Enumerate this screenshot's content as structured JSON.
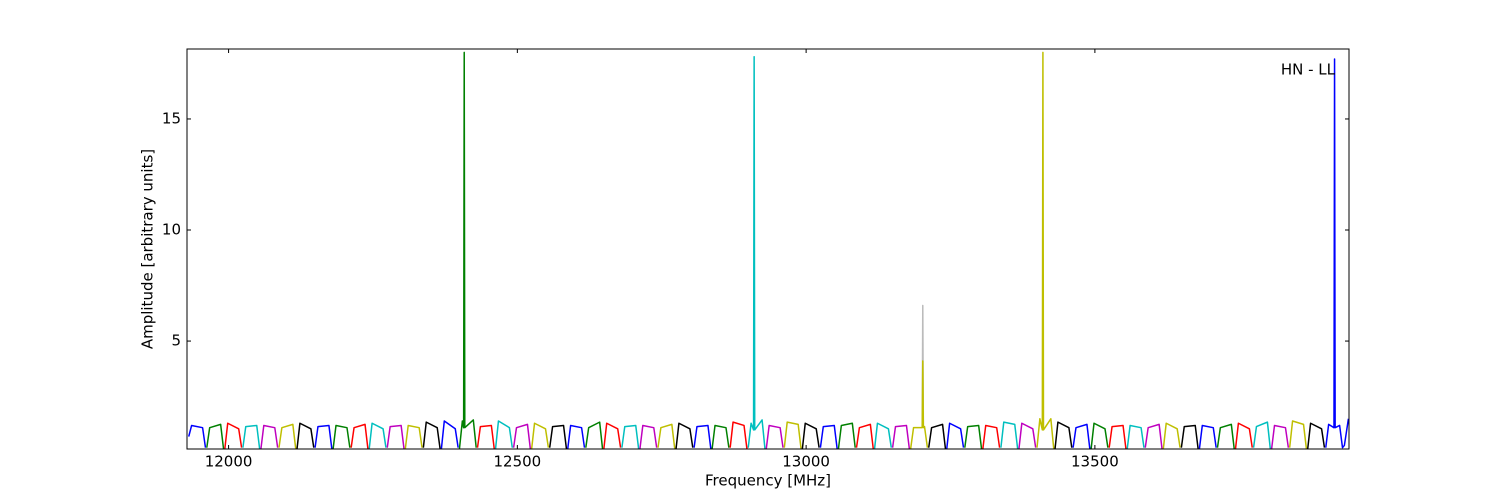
{
  "chart_data": {
    "type": "line",
    "annotation": "HN - LL",
    "x_label": "Frequency [MHz]",
    "y_label": "Amplitude [arbitrary units]",
    "xlim": [
      11928,
      13940
    ],
    "ylim": [
      0.14,
      18.15
    ],
    "xticks": [
      12000,
      12500,
      13000,
      13500
    ],
    "yticks": [
      5,
      10,
      15
    ],
    "grid": false,
    "series": [
      {
        "color": "#bbbbbb",
        "x": [
          13201,
          13202,
          13203
        ],
        "values": [
          1.1,
          6.6,
          1.1
        ]
      },
      {
        "color": "#0000ff",
        "x": [
          11931,
          11936,
          11955,
          11960
        ],
        "values": [
          0.7,
          1.2,
          1.1,
          0.2
        ]
      },
      {
        "color": "#008000",
        "x": [
          11962.25,
          11967.25,
          11986.25,
          11991.25
        ],
        "values": [
          0.2,
          1.1,
          1.25,
          0.15
        ]
      },
      {
        "color": "#ff0000",
        "x": [
          11993.5,
          11998.5,
          12017.5,
          12022.5
        ],
        "values": [
          0.15,
          1.3,
          1.05,
          0.2
        ]
      },
      {
        "color": "#00bfbf",
        "x": [
          12024.75,
          12029.75,
          12048.75,
          12053.75
        ],
        "values": [
          0.2,
          1.15,
          1.2,
          0.15
        ]
      },
      {
        "color": "#bf00bf",
        "x": [
          12056,
          12061,
          12080,
          12085
        ],
        "values": [
          0.15,
          1.2,
          1.1,
          0.2
        ]
      },
      {
        "color": "#bfbf00",
        "x": [
          12087.25,
          12092.25,
          12111.25,
          12116.25
        ],
        "values": [
          0.2,
          1.1,
          1.25,
          0.15
        ]
      },
      {
        "color": "#000000",
        "x": [
          12118.5,
          12123.5,
          12142.5,
          12147.5
        ],
        "values": [
          0.15,
          1.3,
          1.05,
          0.2
        ]
      },
      {
        "color": "#0000ff",
        "x": [
          12149.75,
          12154.75,
          12173.75,
          12178.75
        ],
        "values": [
          0.2,
          1.15,
          1.2,
          0.15
        ]
      },
      {
        "color": "#008000",
        "x": [
          12181,
          12186,
          12205,
          12210
        ],
        "values": [
          0.15,
          1.2,
          1.1,
          0.2
        ]
      },
      {
        "color": "#ff0000",
        "x": [
          12212.25,
          12217.25,
          12236.25,
          12241.25
        ],
        "values": [
          0.2,
          1.1,
          1.25,
          0.15
        ]
      },
      {
        "color": "#00bfbf",
        "x": [
          12243.5,
          12248.5,
          12267.5,
          12272.5
        ],
        "values": [
          0.15,
          1.3,
          1.05,
          0.2
        ]
      },
      {
        "color": "#bf00bf",
        "x": [
          12274.75,
          12279.75,
          12298.75,
          12303.75
        ],
        "values": [
          0.2,
          1.15,
          1.2,
          0.15
        ]
      },
      {
        "color": "#bfbf00",
        "x": [
          12306,
          12311,
          12330,
          12335
        ],
        "values": [
          0.15,
          1.2,
          1.1,
          0.2
        ]
      },
      {
        "color": "#000000",
        "x": [
          12337.25,
          12342.25,
          12361.25,
          12366.25
        ],
        "values": [
          0.2,
          1.35,
          1.1,
          0.15
        ]
      },
      {
        "color": "#0000ff",
        "x": [
          12368.5,
          12373.5,
          12392.5,
          12397.5
        ],
        "values": [
          0.15,
          1.4,
          1.05,
          0.2
        ]
      },
      {
        "color": "#008000",
        "x": [
          12399.75,
          12404.75,
          12407,
          12408,
          12409,
          12423.75,
          12428.75
        ],
        "values": [
          0.15,
          1.4,
          1.1,
          18,
          1.1,
          1.45,
          0.2
        ]
      },
      {
        "color": "#ff0000",
        "x": [
          12431,
          12436,
          12455,
          12460
        ],
        "values": [
          0.2,
          1.15,
          1.2,
          0.15
        ]
      },
      {
        "color": "#00bfbf",
        "x": [
          12462.25,
          12467.25,
          12486.25,
          12491.25
        ],
        "values": [
          0.15,
          1.4,
          1.1,
          0.2
        ]
      },
      {
        "color": "#bf00bf",
        "x": [
          12493.5,
          12498.5,
          12517.5,
          12522.5
        ],
        "values": [
          0.2,
          1.1,
          1.25,
          0.15
        ]
      },
      {
        "color": "#bfbf00",
        "x": [
          12524.75,
          12529.75,
          12548.75,
          12553.75
        ],
        "values": [
          0.15,
          1.3,
          1.05,
          0.2
        ]
      },
      {
        "color": "#000000",
        "x": [
          12556,
          12561,
          12580,
          12585
        ],
        "values": [
          0.2,
          1.15,
          1.2,
          0.15
        ]
      },
      {
        "color": "#0000ff",
        "x": [
          12587.25,
          12592.25,
          12611.25,
          12616.25
        ],
        "values": [
          0.15,
          1.2,
          1.1,
          0.2
        ]
      },
      {
        "color": "#008000",
        "x": [
          12618.5,
          12623.5,
          12642.5,
          12647.5
        ],
        "values": [
          0.2,
          1.1,
          1.35,
          0.15
        ]
      },
      {
        "color": "#ff0000",
        "x": [
          12649.75,
          12654.75,
          12673.75,
          12678.75
        ],
        "values": [
          0.15,
          1.3,
          1.05,
          0.2
        ]
      },
      {
        "color": "#00bfbf",
        "x": [
          12681,
          12686,
          12705,
          12710
        ],
        "values": [
          0.2,
          1.15,
          1.2,
          0.15
        ]
      },
      {
        "color": "#bf00bf",
        "x": [
          12712.25,
          12717.25,
          12736.25,
          12741.25
        ],
        "values": [
          0.15,
          1.2,
          1.1,
          0.2
        ]
      },
      {
        "color": "#bfbf00",
        "x": [
          12743.5,
          12748.5,
          12767.5,
          12772.5
        ],
        "values": [
          0.2,
          1.1,
          1.25,
          0.15
        ]
      },
      {
        "color": "#000000",
        "x": [
          12774.75,
          12779.75,
          12798.75,
          12803.75
        ],
        "values": [
          0.15,
          1.3,
          1.05,
          0.2
        ]
      },
      {
        "color": "#0000ff",
        "x": [
          12806,
          12811,
          12830,
          12835
        ],
        "values": [
          0.2,
          1.15,
          1.2,
          0.15
        ]
      },
      {
        "color": "#008000",
        "x": [
          12837.25,
          12842.25,
          12861.25,
          12866.25
        ],
        "values": [
          0.15,
          1.2,
          1.1,
          0.2
        ]
      },
      {
        "color": "#ff0000",
        "x": [
          12868.5,
          12873.5,
          12892.5,
          12897.5
        ],
        "values": [
          0.2,
          1.35,
          1.2,
          0.15
        ]
      },
      {
        "color": "#00bfbf",
        "x": [
          12899.75,
          12904.75,
          12909,
          12910,
          12911,
          12923.75,
          12928.75
        ],
        "values": [
          0.2,
          1.3,
          1.0,
          17.8,
          1.0,
          1.45,
          0.15
        ]
      },
      {
        "color": "#bf00bf",
        "x": [
          12931,
          12936,
          12955,
          12960
        ],
        "values": [
          0.15,
          1.2,
          1.1,
          0.2
        ]
      },
      {
        "color": "#bfbf00",
        "x": [
          12962.25,
          12967.25,
          12986.25,
          12991.25
        ],
        "values": [
          0.2,
          1.35,
          1.25,
          0.15
        ]
      },
      {
        "color": "#000000",
        "x": [
          12993.5,
          12998.5,
          13017.5,
          13022.5
        ],
        "values": [
          0.15,
          1.3,
          1.05,
          0.2
        ]
      },
      {
        "color": "#0000ff",
        "x": [
          13024.75,
          13029.75,
          13048.75,
          13053.75
        ],
        "values": [
          0.2,
          1.15,
          1.2,
          0.15
        ]
      },
      {
        "color": "#008000",
        "x": [
          13056,
          13061,
          13080,
          13085
        ],
        "values": [
          0.15,
          1.2,
          1.3,
          0.2
        ]
      },
      {
        "color": "#ff0000",
        "x": [
          13087.25,
          13092.25,
          13111.25,
          13116.25
        ],
        "values": [
          0.2,
          1.1,
          1.25,
          0.15
        ]
      },
      {
        "color": "#00bfbf",
        "x": [
          13118.5,
          13123.5,
          13142.5,
          13147.5
        ],
        "values": [
          0.15,
          1.3,
          1.05,
          0.2
        ]
      },
      {
        "color": "#bf00bf",
        "x": [
          13149.75,
          13154.75,
          13173.75,
          13178.75
        ],
        "values": [
          0.2,
          1.15,
          1.2,
          0.15
        ]
      },
      {
        "color": "#bfbf00",
        "x": [
          13181,
          13186,
          13201,
          13202,
          13203,
          13205,
          13210
        ],
        "values": [
          0.15,
          1.1,
          1.1,
          4.1,
          1.1,
          1.15,
          0.2
        ]
      },
      {
        "color": "#000000",
        "x": [
          13212.25,
          13217.25,
          13236.25,
          13241.25
        ],
        "values": [
          0.2,
          1.1,
          1.25,
          0.15
        ]
      },
      {
        "color": "#0000ff",
        "x": [
          13243.5,
          13248.5,
          13267.5,
          13272.5
        ],
        "values": [
          0.15,
          1.3,
          1.05,
          0.2
        ]
      },
      {
        "color": "#008000",
        "x": [
          13274.75,
          13279.75,
          13298.75,
          13303.75
        ],
        "values": [
          0.2,
          1.15,
          1.2,
          0.15
        ]
      },
      {
        "color": "#ff0000",
        "x": [
          13306,
          13311,
          13330,
          13335
        ],
        "values": [
          0.15,
          1.2,
          1.1,
          0.2
        ]
      },
      {
        "color": "#00bfbf",
        "x": [
          13337.25,
          13342.25,
          13361.25,
          13366.25
        ],
        "values": [
          0.2,
          1.35,
          1.25,
          0.15
        ]
      },
      {
        "color": "#bf00bf",
        "x": [
          13368.5,
          13373.5,
          13392.5,
          13397.5
        ],
        "values": [
          0.15,
          1.3,
          1.05,
          0.2
        ]
      },
      {
        "color": "#bfbf00",
        "x": [
          13399.75,
          13404.75,
          13409,
          13410,
          13411,
          13423.75,
          13428.75
        ],
        "values": [
          0.2,
          1.5,
          1.0,
          18,
          1.0,
          1.5,
          0.15
        ]
      },
      {
        "color": "#000000",
        "x": [
          13431,
          13436,
          13455,
          13460
        ],
        "values": [
          0.15,
          1.35,
          1.1,
          0.2
        ]
      },
      {
        "color": "#0000ff",
        "x": [
          13462.25,
          13467.25,
          13486.25,
          13491.25
        ],
        "values": [
          0.2,
          1.1,
          1.25,
          0.15
        ]
      },
      {
        "color": "#008000",
        "x": [
          13493.5,
          13498.5,
          13517.5,
          13522.5
        ],
        "values": [
          0.15,
          1.3,
          1.05,
          0.2
        ]
      },
      {
        "color": "#ff0000",
        "x": [
          13524.75,
          13529.75,
          13548.75,
          13553.75
        ],
        "values": [
          0.2,
          1.15,
          1.2,
          0.15
        ]
      },
      {
        "color": "#00bfbf",
        "x": [
          13556,
          13561,
          13580,
          13585
        ],
        "values": [
          0.15,
          1.2,
          1.1,
          0.2
        ]
      },
      {
        "color": "#bf00bf",
        "x": [
          13587.25,
          13592.25,
          13611.25,
          13616.25
        ],
        "values": [
          0.2,
          1.1,
          1.25,
          0.15
        ]
      },
      {
        "color": "#bfbf00",
        "x": [
          13618.5,
          13623.5,
          13642.5,
          13647.5
        ],
        "values": [
          0.15,
          1.3,
          1.05,
          0.2
        ]
      },
      {
        "color": "#000000",
        "x": [
          13649.75,
          13654.75,
          13673.75,
          13678.75
        ],
        "values": [
          0.2,
          1.15,
          1.2,
          0.15
        ]
      },
      {
        "color": "#0000ff",
        "x": [
          13681,
          13686,
          13705,
          13710
        ],
        "values": [
          0.15,
          1.2,
          1.1,
          0.2
        ]
      },
      {
        "color": "#008000",
        "x": [
          13712.25,
          13717.25,
          13736.25,
          13741.25
        ],
        "values": [
          0.2,
          1.1,
          1.25,
          0.15
        ]
      },
      {
        "color": "#ff0000",
        "x": [
          13743.5,
          13748.5,
          13767.5,
          13772.5
        ],
        "values": [
          0.15,
          1.3,
          1.05,
          0.2
        ]
      },
      {
        "color": "#00bfbf",
        "x": [
          13774.75,
          13779.75,
          13798.75,
          13803.75
        ],
        "values": [
          0.2,
          1.15,
          1.35,
          0.15
        ]
      },
      {
        "color": "#bf00bf",
        "x": [
          13806,
          13811,
          13830,
          13835
        ],
        "values": [
          0.15,
          1.2,
          1.1,
          0.2
        ]
      },
      {
        "color": "#bfbf00",
        "x": [
          13837.25,
          13842.25,
          13861.25,
          13866.25
        ],
        "values": [
          0.2,
          1.4,
          1.25,
          0.15
        ]
      },
      {
        "color": "#000000",
        "x": [
          13868.5,
          13873.5,
          13892.5,
          13897.5
        ],
        "values": [
          0.15,
          1.3,
          1.05,
          0.2
        ]
      },
      {
        "color": "#0000ff",
        "x": [
          13899.75,
          13904.75,
          13914,
          13915,
          13916,
          13923.75,
          13928.75,
          13932,
          13939
        ],
        "values": [
          0.2,
          1.25,
          1.1,
          17.7,
          1.1,
          1.2,
          0.2,
          0.3,
          1.5
        ]
      }
    ]
  }
}
